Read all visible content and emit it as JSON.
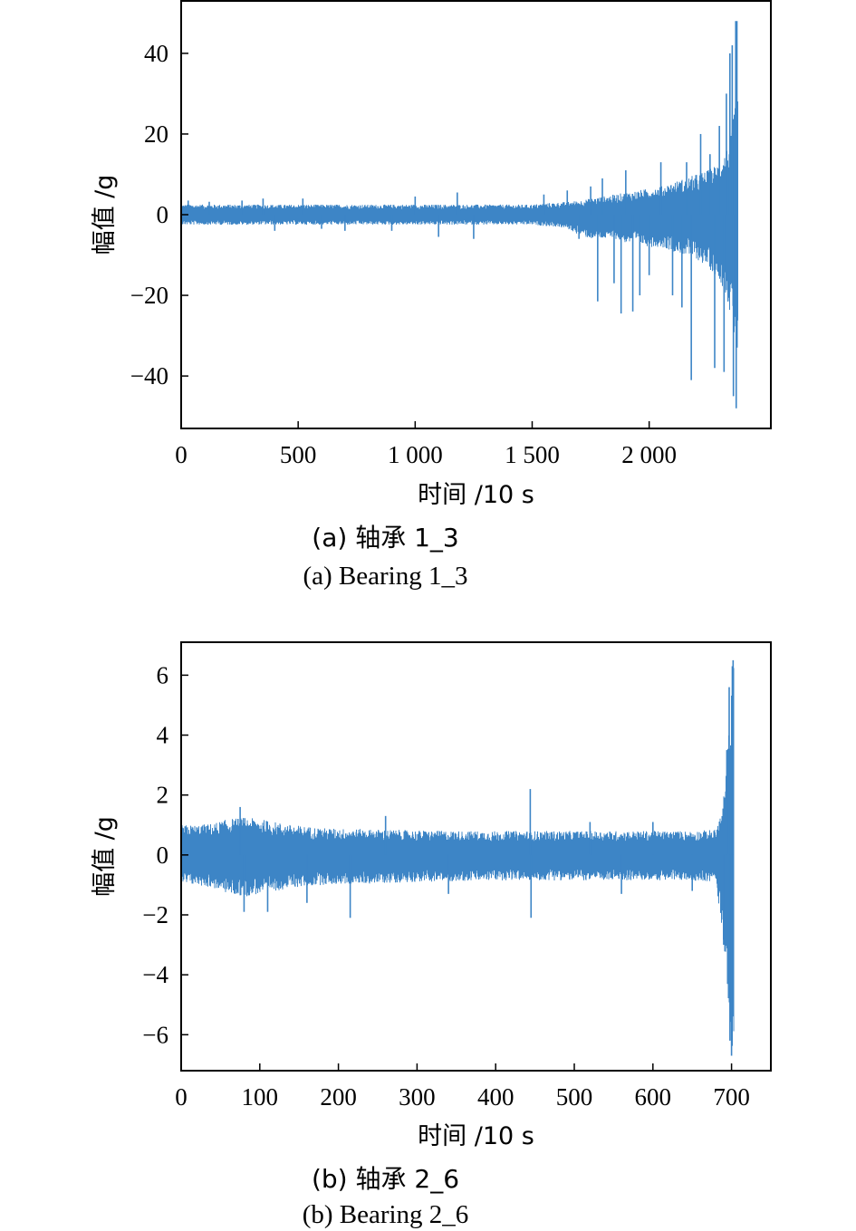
{
  "chart_data": [
    {
      "type": "line",
      "id": "a",
      "xlabel": "时间 /10 s",
      "ylabel": "幅值 /g",
      "caption_cn": "(a) 轴承 1_3",
      "caption_en": "(a) Bearing 1_3",
      "xlim": [
        0,
        2520
      ],
      "ylim": [
        -53,
        53
      ],
      "xticks": [
        0,
        500,
        1000,
        1500,
        2000
      ],
      "xtick_labels": [
        "0",
        "500",
        "1 000",
        "1 500",
        "2 000"
      ],
      "yticks": [
        -40,
        -20,
        0,
        20,
        40
      ],
      "ytick_labels": [
        "−40",
        "−20",
        "0",
        "20",
        "40"
      ],
      "grid": false,
      "series_color": "#3d85c6",
      "envelope": {
        "x": [
          0,
          100,
          200,
          300,
          400,
          500,
          600,
          700,
          800,
          900,
          1000,
          1100,
          1200,
          1300,
          1400,
          1500,
          1550,
          1600,
          1650,
          1700,
          1750,
          1800,
          1850,
          1900,
          1950,
          2000,
          2050,
          2100,
          2150,
          2200,
          2250,
          2300,
          2330,
          2350,
          2365,
          2380
        ],
        "upper": [
          2.5,
          2.5,
          2.5,
          2.5,
          2.5,
          2.5,
          2.5,
          2.5,
          2.5,
          2.5,
          2.5,
          2.5,
          2.5,
          2.5,
          2.5,
          2.5,
          2.8,
          3,
          3.2,
          3.5,
          4,
          4.5,
          5,
          5.5,
          6,
          6.5,
          7,
          8,
          9,
          10,
          11,
          13,
          16,
          20,
          26,
          30
        ],
        "lower": [
          -2.5,
          -2.5,
          -2.5,
          -2.5,
          -2.5,
          -2.5,
          -2.5,
          -2.5,
          -2.5,
          -2.5,
          -2.5,
          -2.5,
          -2.5,
          -2.5,
          -2.5,
          -2.5,
          -2.8,
          -3,
          -3.5,
          -5,
          -6,
          -6,
          -6,
          -7,
          -7,
          -8,
          -8,
          -9,
          -10,
          -11,
          -13,
          -16,
          -20,
          -26,
          -32,
          -36
        ]
      },
      "spikes": [
        [
          30,
          3.5
        ],
        [
          120,
          3.2
        ],
        [
          260,
          3.5
        ],
        [
          350,
          4
        ],
        [
          400,
          -4
        ],
        [
          520,
          4
        ],
        [
          600,
          -3.5
        ],
        [
          700,
          -4
        ],
        [
          900,
          -4
        ],
        [
          1000,
          4.5
        ],
        [
          1100,
          -5.5
        ],
        [
          1180,
          5.5
        ],
        [
          1250,
          -6
        ],
        [
          1550,
          5
        ],
        [
          1650,
          6
        ],
        [
          1700,
          -6
        ],
        [
          1750,
          7
        ],
        [
          1780,
          -21.5
        ],
        [
          1800,
          9
        ],
        [
          1850,
          -17
        ],
        [
          1880,
          -24.5
        ],
        [
          1900,
          11
        ],
        [
          1930,
          -24
        ],
        [
          1960,
          -20
        ],
        [
          2000,
          -15
        ],
        [
          2050,
          13
        ],
        [
          2100,
          -20
        ],
        [
          2140,
          -23
        ],
        [
          2160,
          13
        ],
        [
          2180,
          -41
        ],
        [
          2220,
          20
        ],
        [
          2260,
          15
        ],
        [
          2280,
          -38
        ],
        [
          2300,
          22
        ],
        [
          2320,
          -39
        ],
        [
          2330,
          30
        ],
        [
          2345,
          40
        ],
        [
          2355,
          42
        ],
        [
          2360,
          -45
        ],
        [
          2370,
          48
        ],
        [
          2372,
          -48
        ],
        [
          2375,
          48
        ]
      ]
    },
    {
      "type": "line",
      "id": "b",
      "xlabel": "时间 /10 s",
      "ylabel": "幅值 /g",
      "caption_cn": "(b) 轴承 2_6",
      "caption_en": "(b) Bearing 2_6",
      "xlim": [
        0,
        750
      ],
      "ylim": [
        -7.2,
        7.1
      ],
      "xticks": [
        0,
        100,
        200,
        300,
        400,
        500,
        600,
        700
      ],
      "xtick_labels": [
        "0",
        "100",
        "200",
        "300",
        "400",
        "500",
        "600",
        "700"
      ],
      "yticks": [
        -6,
        -4,
        -2,
        0,
        2,
        4,
        6
      ],
      "ytick_labels": [
        "−6",
        "−4",
        "−2",
        "0",
        "2",
        "4",
        "6"
      ],
      "grid": false,
      "series_color": "#3d85c6",
      "envelope": {
        "x": [
          0,
          20,
          40,
          60,
          80,
          100,
          120,
          140,
          160,
          180,
          200,
          250,
          300,
          350,
          400,
          450,
          500,
          550,
          600,
          650,
          680,
          688,
          692,
          696,
          700,
          703
        ],
        "upper": [
          1.0,
          1.0,
          1.05,
          1.2,
          1.25,
          1.2,
          1.1,
          1.0,
          0.95,
          0.9,
          0.88,
          0.85,
          0.82,
          0.8,
          0.8,
          0.8,
          0.8,
          0.8,
          0.8,
          0.8,
          0.85,
          1.5,
          2.5,
          4,
          5.5,
          6.5
        ],
        "lower": [
          -1.0,
          -1.0,
          -1.1,
          -1.3,
          -1.4,
          -1.3,
          -1.2,
          -1.1,
          -1.05,
          -1.0,
          -0.98,
          -0.95,
          -0.9,
          -0.88,
          -0.85,
          -0.85,
          -0.85,
          -0.85,
          -0.85,
          -0.85,
          -0.9,
          -2.5,
          -3.5,
          -5,
          -6.2,
          -6.7
        ]
      },
      "spikes": [
        [
          75,
          1.6
        ],
        [
          80,
          -1.9
        ],
        [
          110,
          -1.9
        ],
        [
          160,
          -1.6
        ],
        [
          215,
          -2.1
        ],
        [
          260,
          1.3
        ],
        [
          340,
          -1.3
        ],
        [
          444,
          2.2
        ],
        [
          445,
          -2.1
        ],
        [
          520,
          1.1
        ],
        [
          560,
          -1.3
        ],
        [
          600,
          1.1
        ],
        [
          650,
          -1.2
        ],
        [
          690,
          -3
        ],
        [
          694,
          3.5
        ],
        [
          697,
          5.6
        ],
        [
          698,
          -6.2
        ],
        [
          700,
          -6.7
        ],
        [
          701,
          6.3
        ],
        [
          702,
          6.5
        ]
      ]
    }
  ]
}
